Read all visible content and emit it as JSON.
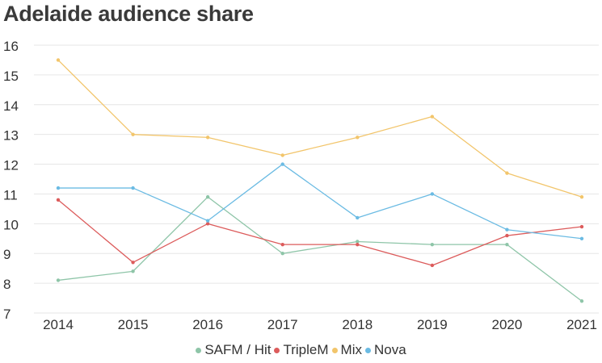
{
  "chart_data": {
    "type": "line",
    "title": "Adelaide audience share",
    "xlabel": "",
    "ylabel": "",
    "categories": [
      "2014",
      "2015",
      "2016",
      "2017",
      "2018",
      "2019",
      "2020",
      "2021"
    ],
    "y_ticks": [
      "16",
      "15",
      "14",
      "13",
      "12",
      "11",
      "10",
      "9",
      "8",
      "7"
    ],
    "ylim": [
      7,
      16
    ],
    "grid": true,
    "legend_position": "bottom",
    "series": [
      {
        "name": "SAFM / Hit",
        "color": "#8ec5a8",
        "values": [
          8.1,
          8.4,
          10.9,
          9.0,
          9.4,
          9.3,
          9.3,
          7.4
        ]
      },
      {
        "name": "TripleM",
        "color": "#dc5b5b",
        "values": [
          10.8,
          8.7,
          10.0,
          9.3,
          9.3,
          8.6,
          9.6,
          9.9
        ]
      },
      {
        "name": "Mix",
        "color": "#f2c56b",
        "values": [
          15.5,
          13.0,
          12.9,
          12.3,
          12.9,
          13.6,
          11.7,
          10.9
        ]
      },
      {
        "name": "Nova",
        "color": "#6bbbe3",
        "values": [
          11.2,
          11.2,
          10.1,
          12.0,
          10.2,
          11.0,
          9.8,
          9.5
        ]
      }
    ]
  }
}
